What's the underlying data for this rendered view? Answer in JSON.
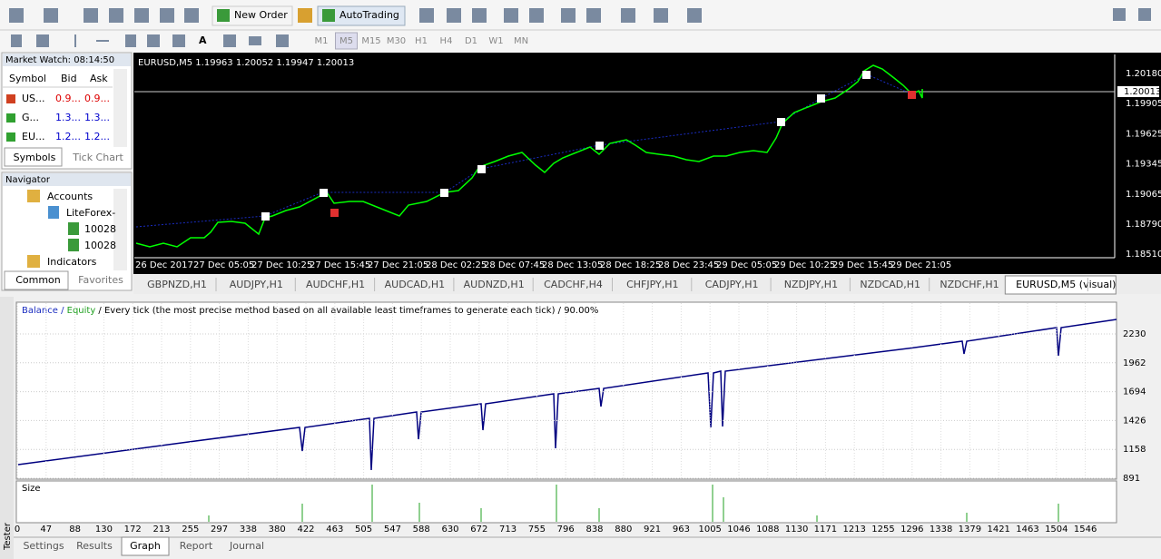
{
  "toolbar": {
    "new_order": "New Order",
    "auto_trading": "AutoTrading",
    "timeframes": [
      "M1",
      "M5",
      "M15",
      "M30",
      "H1",
      "H4",
      "D1",
      "W1",
      "MN"
    ]
  },
  "market_watch": {
    "title": "Market Watch: 08:14:50",
    "headers": [
      "Symbol",
      "Bid",
      "Ask"
    ],
    "rows": [
      [
        "US...",
        "0.9...",
        "0.9..."
      ],
      [
        "G...",
        "1.3...",
        "1.3..."
      ],
      [
        "EU...",
        "1.2...",
        "1.2..."
      ]
    ],
    "tabs": [
      "Symbols",
      "Tick Chart"
    ]
  },
  "navigator": {
    "title": "Navigator",
    "items": [
      "Accounts",
      "LiteForex-",
      "10028",
      "10028",
      "Indicators"
    ],
    "tabs": [
      "Common",
      "Favorites"
    ]
  },
  "price_chart": {
    "label": "EURUSD,M5  1.19963 1.20052 1.19947 1.20013",
    "price_labels": [
      "1.20180",
      "1.19905",
      "1.19625",
      "1.19345",
      "1.19065",
      "1.18790",
      "1.18510"
    ],
    "current_price": "1.20013",
    "time_labels": [
      "26 Dec 2017",
      "27 Dec 05:05",
      "27 Dec 10:25",
      "27 Dec 15:45",
      "27 Dec 21:05",
      "28 Dec 02:25",
      "28 Dec 07:45",
      "28 Dec 13:05",
      "28 Dec 18:25",
      "28 Dec 23:45",
      "29 Dec 05:05",
      "29 Dec 10:25",
      "29 Dec 15:45",
      "29 Dec 21:05"
    ]
  },
  "chart_tabs": [
    "GBPNZD,H1",
    "AUDJPY,H1",
    "AUDCHF,H1",
    "AUDCAD,H1",
    "AUDNZD,H1",
    "CADCHF,H4",
    "CHFJPY,H1",
    "CADJPY,H1",
    "NZDJPY,H1",
    "NZDCAD,H1",
    "NZDCHF,H1",
    "EURUSD,M5 (visual)"
  ],
  "tester": {
    "side_label": "Tester",
    "legend": {
      "balance": "Balance",
      "sep1": " / ",
      "equity": "Equity",
      "rest": " / Every tick (the most precise method based on all available least timeframes to generate each tick) / 90.00%"
    },
    "y_labels": [
      "2230",
      "1962",
      "1694",
      "1426",
      "1158",
      "891"
    ],
    "size_label": "Size",
    "x_labels": [
      "0",
      "47",
      "88",
      "130",
      "172",
      "213",
      "255",
      "297",
      "338",
      "380",
      "422",
      "463",
      "505",
      "547",
      "588",
      "630",
      "672",
      "713",
      "755",
      "796",
      "838",
      "880",
      "921",
      "963",
      "1005",
      "1046",
      "1088",
      "1130",
      "1171",
      "1213",
      "1255",
      "1296",
      "1338",
      "1379",
      "1421",
      "1463",
      "1504",
      "1546"
    ],
    "tabs": [
      "Settings",
      "Results",
      "Graph",
      "Report",
      "Journal"
    ]
  }
}
